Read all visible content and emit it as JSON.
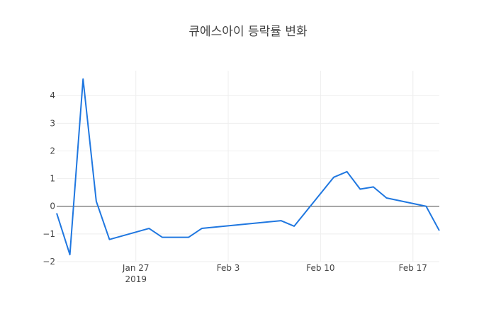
{
  "chart_data": {
    "type": "line",
    "title": "큐에스아이 등락률 변화",
    "xlabel": "",
    "ylabel": "",
    "x": [
      "2019-01-21",
      "2019-01-22",
      "2019-01-23",
      "2019-01-24",
      "2019-01-25",
      "2019-01-28",
      "2019-01-29",
      "2019-01-30",
      "2019-01-31",
      "2019-02-01",
      "2019-02-07",
      "2019-02-08",
      "2019-02-11",
      "2019-02-12",
      "2019-02-13",
      "2019-02-14",
      "2019-02-15",
      "2019-02-18",
      "2019-02-19"
    ],
    "series": [
      {
        "color": "#1f77e0",
        "values": [
          -0.25,
          -1.75,
          4.6,
          0.18,
          -1.2,
          -0.8,
          -1.12,
          -1.12,
          -1.12,
          -0.8,
          -0.52,
          -0.72,
          1.05,
          1.25,
          0.62,
          0.7,
          0.3,
          0.0,
          -0.88
        ]
      }
    ],
    "xlim": [
      "2019-01-21",
      "2019-02-19"
    ],
    "ylim": [
      -2,
      4.9
    ],
    "x_ticks": [
      {
        "date": "2019-01-27",
        "label": "Jan 27",
        "sublabel": "2019"
      },
      {
        "date": "2019-02-03",
        "label": "Feb 3",
        "sublabel": ""
      },
      {
        "date": "2019-02-10",
        "label": "Feb 10",
        "sublabel": ""
      },
      {
        "date": "2019-02-17",
        "label": "Feb 17",
        "sublabel": ""
      }
    ],
    "y_ticks": [
      -2,
      -1,
      0,
      1,
      2,
      3,
      4
    ],
    "y_tick_labels": [
      "−2",
      "−1",
      "0",
      "1",
      "2",
      "3",
      "4"
    ],
    "grid": true,
    "zero_line": true,
    "legend": "none"
  }
}
